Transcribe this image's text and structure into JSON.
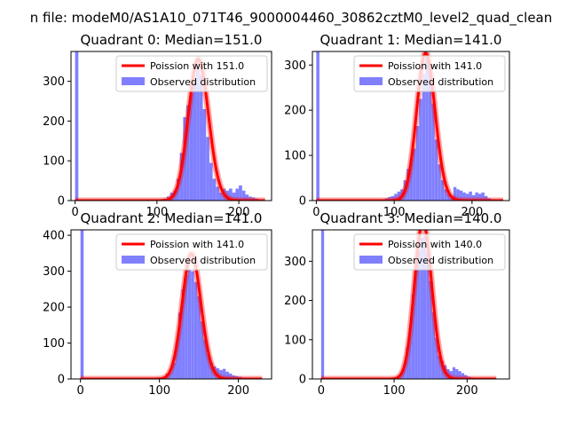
{
  "figure_title": "n file: modeM0/AS1A10_071T46_9000004460_30862cztM0_level2_quad_clean",
  "colors": {
    "poisson_line": "#ff0000",
    "observed_fill": "#8080ff",
    "axis": "#000000",
    "background": "#ffffff"
  },
  "chart_data": [
    {
      "type": "bar",
      "title": "Quadrant 0: Median=151.0",
      "median": 151.0,
      "xlim": [
        -5,
        240
      ],
      "ylim": [
        0,
        375
      ],
      "xticks": [
        0,
        100,
        200
      ],
      "yticks": [
        0,
        100,
        200,
        300
      ],
      "legend": {
        "position": "top-right",
        "entries": [
          "Poission with 151.0",
          "Observed distribution"
        ]
      },
      "series": [
        {
          "name": "Poission with 151.0",
          "kind": "line",
          "mu": 151.0,
          "x_range": [
            0,
            232
          ]
        },
        {
          "name": "Observed distribution",
          "kind": "histogram",
          "bins": [
            {
              "x0": 0,
              "x1": 4,
              "count": 375
            },
            {
              "x0": 80,
              "x1": 84,
              "count": 2
            },
            {
              "x0": 104,
              "x1": 108,
              "count": 2
            },
            {
              "x0": 108,
              "x1": 112,
              "count": 5
            },
            {
              "x0": 112,
              "x1": 116,
              "count": 10
            },
            {
              "x0": 116,
              "x1": 120,
              "count": 20
            },
            {
              "x0": 120,
              "x1": 124,
              "count": 25
            },
            {
              "x0": 124,
              "x1": 128,
              "count": 55
            },
            {
              "x0": 128,
              "x1": 132,
              "count": 120
            },
            {
              "x0": 132,
              "x1": 136,
              "count": 210
            },
            {
              "x0": 136,
              "x1": 140,
              "count": 240
            },
            {
              "x0": 140,
              "x1": 144,
              "count": 270
            },
            {
              "x0": 144,
              "x1": 148,
              "count": 300
            },
            {
              "x0": 148,
              "x1": 152,
              "count": 330
            },
            {
              "x0": 152,
              "x1": 156,
              "count": 315
            },
            {
              "x0": 156,
              "x1": 160,
              "count": 230
            },
            {
              "x0": 160,
              "x1": 164,
              "count": 160
            },
            {
              "x0": 164,
              "x1": 168,
              "count": 95
            },
            {
              "x0": 168,
              "x1": 172,
              "count": 55
            },
            {
              "x0": 172,
              "x1": 176,
              "count": 35
            },
            {
              "x0": 176,
              "x1": 180,
              "count": 20
            },
            {
              "x0": 180,
              "x1": 184,
              "count": 30
            },
            {
              "x0": 184,
              "x1": 188,
              "count": 25
            },
            {
              "x0": 188,
              "x1": 192,
              "count": 30
            },
            {
              "x0": 192,
              "x1": 196,
              "count": 20
            },
            {
              "x0": 196,
              "x1": 200,
              "count": 30
            },
            {
              "x0": 200,
              "x1": 204,
              "count": 38
            },
            {
              "x0": 204,
              "x1": 208,
              "count": 25
            },
            {
              "x0": 208,
              "x1": 212,
              "count": 15
            },
            {
              "x0": 212,
              "x1": 216,
              "count": 10
            },
            {
              "x0": 216,
              "x1": 220,
              "count": 8
            },
            {
              "x0": 220,
              "x1": 224,
              "count": 5
            },
            {
              "x0": 224,
              "x1": 228,
              "count": 3
            }
          ]
        }
      ]
    },
    {
      "type": "bar",
      "title": "Quadrant 1: Median=141.0",
      "median": 141.0,
      "xlim": [
        -5,
        248
      ],
      "ylim": [
        0,
        330
      ],
      "xticks": [
        0,
        100,
        200
      ],
      "yticks": [
        0,
        100,
        200,
        300
      ],
      "legend": {
        "position": "top-right",
        "entries": [
          "Poission with 141.0",
          "Observed distribution"
        ]
      },
      "series": [
        {
          "name": "Poission with 141.0",
          "kind": "line",
          "mu": 141.0,
          "x_range": [
            0,
            240
          ]
        },
        {
          "name": "Observed distribution",
          "kind": "histogram",
          "bins": [
            {
              "x0": 0,
              "x1": 4,
              "count": 330
            },
            {
              "x0": 84,
              "x1": 88,
              "count": 3
            },
            {
              "x0": 88,
              "x1": 92,
              "count": 5
            },
            {
              "x0": 92,
              "x1": 96,
              "count": 8
            },
            {
              "x0": 96,
              "x1": 100,
              "count": 10
            },
            {
              "x0": 100,
              "x1": 104,
              "count": 15
            },
            {
              "x0": 104,
              "x1": 108,
              "count": 20
            },
            {
              "x0": 108,
              "x1": 112,
              "count": 25
            },
            {
              "x0": 112,
              "x1": 116,
              "count": 45
            },
            {
              "x0": 116,
              "x1": 120,
              "count": 70
            },
            {
              "x0": 120,
              "x1": 124,
              "count": 90
            },
            {
              "x0": 124,
              "x1": 128,
              "count": 115
            },
            {
              "x0": 128,
              "x1": 132,
              "count": 165
            },
            {
              "x0": 132,
              "x1": 136,
              "count": 225
            },
            {
              "x0": 136,
              "x1": 140,
              "count": 280
            },
            {
              "x0": 140,
              "x1": 144,
              "count": 318
            },
            {
              "x0": 144,
              "x1": 148,
              "count": 300
            },
            {
              "x0": 148,
              "x1": 152,
              "count": 215
            },
            {
              "x0": 152,
              "x1": 156,
              "count": 135
            },
            {
              "x0": 156,
              "x1": 160,
              "count": 80
            },
            {
              "x0": 160,
              "x1": 164,
              "count": 45
            },
            {
              "x0": 164,
              "x1": 168,
              "count": 25
            },
            {
              "x0": 168,
              "x1": 172,
              "count": 15
            },
            {
              "x0": 172,
              "x1": 176,
              "count": 10
            },
            {
              "x0": 176,
              "x1": 180,
              "count": 30
            },
            {
              "x0": 180,
              "x1": 184,
              "count": 25
            },
            {
              "x0": 184,
              "x1": 188,
              "count": 22
            },
            {
              "x0": 188,
              "x1": 192,
              "count": 18
            },
            {
              "x0": 192,
              "x1": 196,
              "count": 15
            },
            {
              "x0": 196,
              "x1": 200,
              "count": 20
            },
            {
              "x0": 200,
              "x1": 204,
              "count": 12
            },
            {
              "x0": 204,
              "x1": 208,
              "count": 18
            },
            {
              "x0": 208,
              "x1": 212,
              "count": 15
            },
            {
              "x0": 212,
              "x1": 216,
              "count": 18
            },
            {
              "x0": 216,
              "x1": 220,
              "count": 10
            },
            {
              "x0": 220,
              "x1": 224,
              "count": 5
            },
            {
              "x0": 224,
              "x1": 228,
              "count": 3
            }
          ]
        }
      ]
    },
    {
      "type": "bar",
      "title": "Quadrant 2: Median=141.0",
      "median": 141.0,
      "xlim": [
        -12,
        242
      ],
      "ylim": [
        0,
        415
      ],
      "xticks": [
        0,
        100,
        200
      ],
      "yticks": [
        0,
        100,
        200,
        300,
        400
      ],
      "legend": {
        "position": "top-right",
        "entries": [
          "Poission with 141.0",
          "Observed distribution"
        ]
      },
      "series": [
        {
          "name": "Poission with 141.0",
          "kind": "line",
          "mu": 141.0,
          "x_range": [
            0,
            230
          ]
        },
        {
          "name": "Observed distribution",
          "kind": "histogram",
          "bins": [
            {
              "x0": 0,
              "x1": 4,
              "count": 415
            },
            {
              "x0": 80,
              "x1": 84,
              "count": 2
            },
            {
              "x0": 104,
              "x1": 108,
              "count": 5
            },
            {
              "x0": 108,
              "x1": 112,
              "count": 15
            },
            {
              "x0": 112,
              "x1": 116,
              "count": 25
            },
            {
              "x0": 116,
              "x1": 120,
              "count": 45
            },
            {
              "x0": 120,
              "x1": 124,
              "count": 100
            },
            {
              "x0": 124,
              "x1": 128,
              "count": 185
            },
            {
              "x0": 128,
              "x1": 132,
              "count": 250
            },
            {
              "x0": 132,
              "x1": 136,
              "count": 290
            },
            {
              "x0": 136,
              "x1": 140,
              "count": 305
            },
            {
              "x0": 140,
              "x1": 144,
              "count": 300
            },
            {
              "x0": 144,
              "x1": 148,
              "count": 270
            },
            {
              "x0": 148,
              "x1": 152,
              "count": 230
            },
            {
              "x0": 152,
              "x1": 156,
              "count": 160
            },
            {
              "x0": 156,
              "x1": 160,
              "count": 110
            },
            {
              "x0": 160,
              "x1": 164,
              "count": 70
            },
            {
              "x0": 164,
              "x1": 168,
              "count": 45
            },
            {
              "x0": 168,
              "x1": 172,
              "count": 35
            },
            {
              "x0": 172,
              "x1": 176,
              "count": 30
            },
            {
              "x0": 176,
              "x1": 180,
              "count": 25
            },
            {
              "x0": 180,
              "x1": 184,
              "count": 28
            },
            {
              "x0": 184,
              "x1": 188,
              "count": 20
            },
            {
              "x0": 188,
              "x1": 192,
              "count": 15
            },
            {
              "x0": 192,
              "x1": 196,
              "count": 10
            },
            {
              "x0": 196,
              "x1": 200,
              "count": 8
            },
            {
              "x0": 200,
              "x1": 204,
              "count": 6
            },
            {
              "x0": 204,
              "x1": 208,
              "count": 4
            },
            {
              "x0": 208,
              "x1": 212,
              "count": 3
            }
          ]
        }
      ]
    },
    {
      "type": "bar",
      "title": "Quadrant 3: Median=140.0",
      "median": 140.0,
      "xlim": [
        -12,
        258
      ],
      "ylim": [
        0,
        380
      ],
      "xticks": [
        0,
        100,
        200
      ],
      "yticks": [
        0,
        100,
        200,
        300
      ],
      "legend": {
        "position": "top-right",
        "entries": [
          "Poission with 140.0",
          "Observed distribution"
        ]
      },
      "series": [
        {
          "name": "Poission with 140.0",
          "kind": "line",
          "mu": 140.0,
          "x_range": [
            0,
            240
          ]
        },
        {
          "name": "Observed distribution",
          "kind": "histogram",
          "bins": [
            {
              "x0": 0,
              "x1": 4,
              "count": 380
            },
            {
              "x0": 100,
              "x1": 104,
              "count": 3
            },
            {
              "x0": 104,
              "x1": 108,
              "count": 8
            },
            {
              "x0": 108,
              "x1": 112,
              "count": 15
            },
            {
              "x0": 112,
              "x1": 116,
              "count": 35
            },
            {
              "x0": 116,
              "x1": 120,
              "count": 80
            },
            {
              "x0": 120,
              "x1": 124,
              "count": 130
            },
            {
              "x0": 124,
              "x1": 128,
              "count": 215
            },
            {
              "x0": 128,
              "x1": 132,
              "count": 285
            },
            {
              "x0": 132,
              "x1": 136,
              "count": 325
            },
            {
              "x0": 136,
              "x1": 140,
              "count": 360
            },
            {
              "x0": 140,
              "x1": 144,
              "count": 365
            },
            {
              "x0": 144,
              "x1": 148,
              "count": 320
            },
            {
              "x0": 148,
              "x1": 152,
              "count": 250
            },
            {
              "x0": 152,
              "x1": 156,
              "count": 170
            },
            {
              "x0": 156,
              "x1": 160,
              "count": 105
            },
            {
              "x0": 160,
              "x1": 164,
              "count": 60
            },
            {
              "x0": 164,
              "x1": 168,
              "count": 45
            },
            {
              "x0": 168,
              "x1": 172,
              "count": 35
            },
            {
              "x0": 172,
              "x1": 176,
              "count": 25
            },
            {
              "x0": 176,
              "x1": 180,
              "count": 20
            },
            {
              "x0": 180,
              "x1": 184,
              "count": 30
            },
            {
              "x0": 184,
              "x1": 188,
              "count": 25
            },
            {
              "x0": 188,
              "x1": 192,
              "count": 20
            },
            {
              "x0": 192,
              "x1": 196,
              "count": 15
            },
            {
              "x0": 196,
              "x1": 200,
              "count": 10
            },
            {
              "x0": 200,
              "x1": 204,
              "count": 6
            },
            {
              "x0": 204,
              "x1": 208,
              "count": 4
            }
          ]
        }
      ]
    }
  ]
}
